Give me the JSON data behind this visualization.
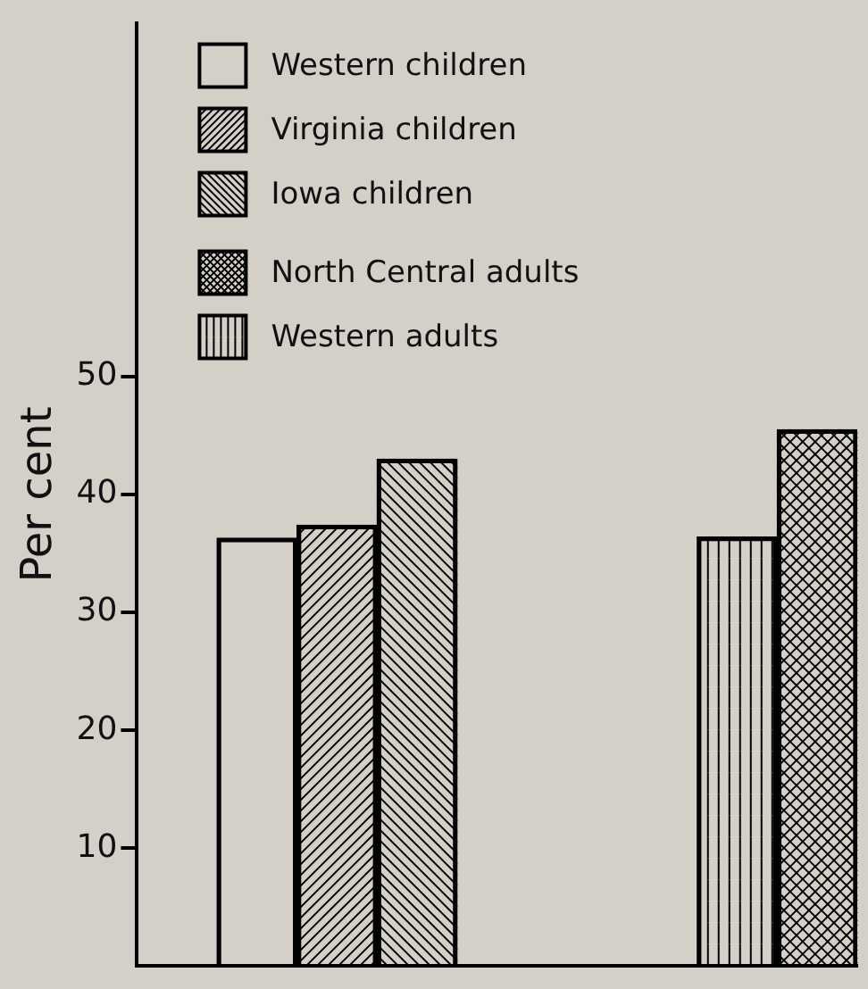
{
  "chart_data": {
    "type": "bar",
    "ylabel": "Per cent",
    "categories": [
      null,
      null,
      null,
      null,
      null,
      null,
      null,
      null,
      null
    ],
    "ylim": [
      0,
      80
    ],
    "yticks": [
      10,
      20,
      30,
      40,
      50
    ],
    "grid": false,
    "legend": "top",
    "series": [
      {
        "name": "Western children",
        "color": "#000000",
        "values": [
          null,
          36.3,
          null,
          null,
          null,
          null,
          null,
          null,
          null
        ]
      },
      {
        "name": "Virginia children",
        "color": "#000000",
        "values": [
          null,
          null,
          37.4,
          null,
          null,
          null,
          null,
          null,
          null
        ]
      },
      {
        "name": "Iowa children",
        "color": "#000000",
        "values": [
          null,
          null,
          null,
          43,
          null,
          null,
          null,
          null,
          null
        ]
      },
      {
        "name": "North Central adults",
        "color": "#000000",
        "values": [
          null,
          null,
          null,
          null,
          null,
          null,
          null,
          null,
          45.5
        ]
      },
      {
        "name": "Western adults",
        "color": "#000000",
        "values": [
          null,
          null,
          null,
          null,
          null,
          null,
          null,
          36.4,
          null
        ]
      }
    ]
  }
}
